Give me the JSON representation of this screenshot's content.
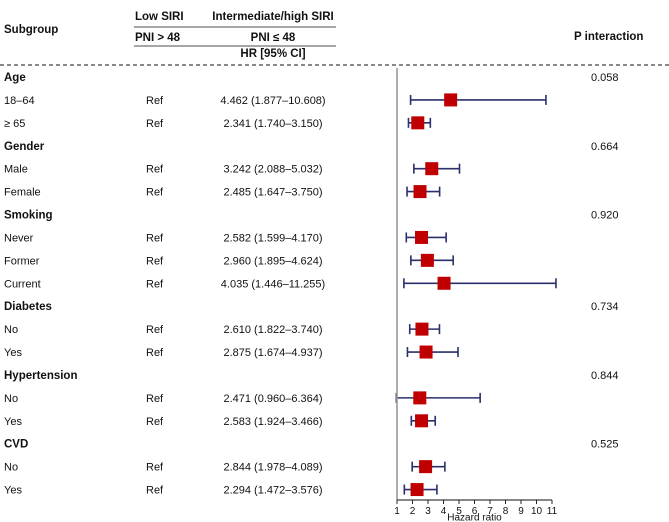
{
  "header": {
    "subgroup": "Subgroup",
    "col_low_top": "Low SIRI",
    "col_low_bottom": "PNI > 48",
    "col_high_top": "Intermediate/high SIRI",
    "col_high_bottom": "PNI ≤ 48",
    "hr_label": "HR [95% CI]",
    "p_interaction": "P interaction"
  },
  "colors": {
    "marker": "#c00000",
    "ci_line": "#2b2f6b",
    "ref_line": "#9a9a9a",
    "text": "#111111"
  },
  "chart_data": {
    "type": "forest",
    "xlabel": "Hazard ratio",
    "xlim": [
      1,
      11
    ],
    "xticks": [
      1,
      2,
      3,
      4,
      5,
      6,
      7,
      8,
      9,
      10,
      11
    ],
    "reference_value": 1,
    "groups": [
      {
        "name": "Age",
        "p": "0.058",
        "rows": [
          {
            "label": "18–64",
            "ref": "Ref",
            "hr_text": "4.462 (1.877–10.608)",
            "hr": 4.462,
            "lo": 1.877,
            "hi": 10.608
          },
          {
            "label": "≥ 65",
            "ref": "Ref",
            "hr_text": "2.341 (1.740–3.150)",
            "hr": 2.341,
            "lo": 1.74,
            "hi": 3.15
          }
        ]
      },
      {
        "name": "Gender",
        "p": "0.664",
        "rows": [
          {
            "label": "Male",
            "ref": "Ref",
            "hr_text": "3.242 (2.088–5.032)",
            "hr": 3.242,
            "lo": 2.088,
            "hi": 5.032
          },
          {
            "label": "Female",
            "ref": "Ref",
            "hr_text": "2.485 (1.647–3.750)",
            "hr": 2.485,
            "lo": 1.647,
            "hi": 3.75
          }
        ]
      },
      {
        "name": "Smoking",
        "p": "0.920",
        "rows": [
          {
            "label": "Never",
            "ref": "Ref",
            "hr_text": "2.582 (1.599–4.170)",
            "hr": 2.582,
            "lo": 1.599,
            "hi": 4.17
          },
          {
            "label": "Former",
            "ref": "Ref",
            "hr_text": "2.960 (1.895–4.624)",
            "hr": 2.96,
            "lo": 1.895,
            "hi": 4.624
          },
          {
            "label": "Current",
            "ref": "Ref",
            "hr_text": "4.035 (1.446–11.255)",
            "hr": 4.035,
            "lo": 1.446,
            "hi": 11.255
          }
        ]
      },
      {
        "name": "Diabetes",
        "p": "0.734",
        "rows": [
          {
            "label": "No",
            "ref": "Ref",
            "hr_text": "2.610 (1.822–3.740)",
            "hr": 2.61,
            "lo": 1.822,
            "hi": 3.74
          },
          {
            "label": "Yes",
            "ref": "Ref",
            "hr_text": "2.875 (1.674–4.937)",
            "hr": 2.875,
            "lo": 1.674,
            "hi": 4.937
          }
        ]
      },
      {
        "name": "Hypertension",
        "p": "0.844",
        "rows": [
          {
            "label": "No",
            "ref": "Ref",
            "hr_text": "2.471 (0.960–6.364)",
            "hr": 2.471,
            "lo": 0.96,
            "hi": 6.364
          },
          {
            "label": "Yes",
            "ref": "Ref",
            "hr_text": "2.583 (1.924–3.466)",
            "hr": 2.583,
            "lo": 1.924,
            "hi": 3.466
          }
        ]
      },
      {
        "name": "CVD",
        "p": "0.525",
        "rows": [
          {
            "label": "No",
            "ref": "Ref",
            "hr_text": "2.844 (1.978–4.089)",
            "hr": 2.844,
            "lo": 1.978,
            "hi": 4.089
          },
          {
            "label": "Yes",
            "ref": "Ref",
            "hr_text": "2.294 (1.472–3.576)",
            "hr": 2.294,
            "lo": 1.472,
            "hi": 3.576
          }
        ]
      }
    ]
  }
}
